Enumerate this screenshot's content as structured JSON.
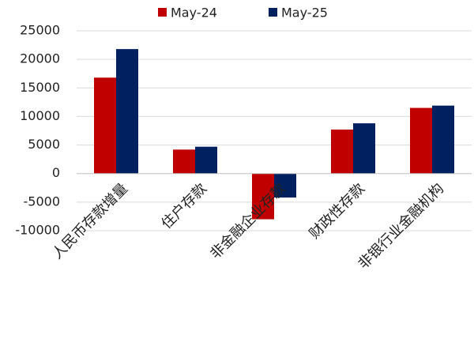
{
  "chart_data": {
    "type": "bar",
    "categories": [
      "人民币存款增量",
      "住户存款",
      "非金融企业存款",
      "财政性存款",
      "非银行业金融机构"
    ],
    "series": [
      {
        "name": "May-24",
        "color": "#c00000",
        "values": [
          16800,
          4200,
          -8000,
          7700,
          11500
        ]
      },
      {
        "name": "May-25",
        "color": "#002060",
        "values": [
          21800,
          4700,
          -4200,
          8800,
          11900
        ]
      }
    ],
    "ylim": [
      -10000,
      25000
    ],
    "yticks": [
      -10000,
      -5000,
      0,
      5000,
      10000,
      15000,
      20000,
      25000
    ],
    "grid": true,
    "legend": "top"
  }
}
